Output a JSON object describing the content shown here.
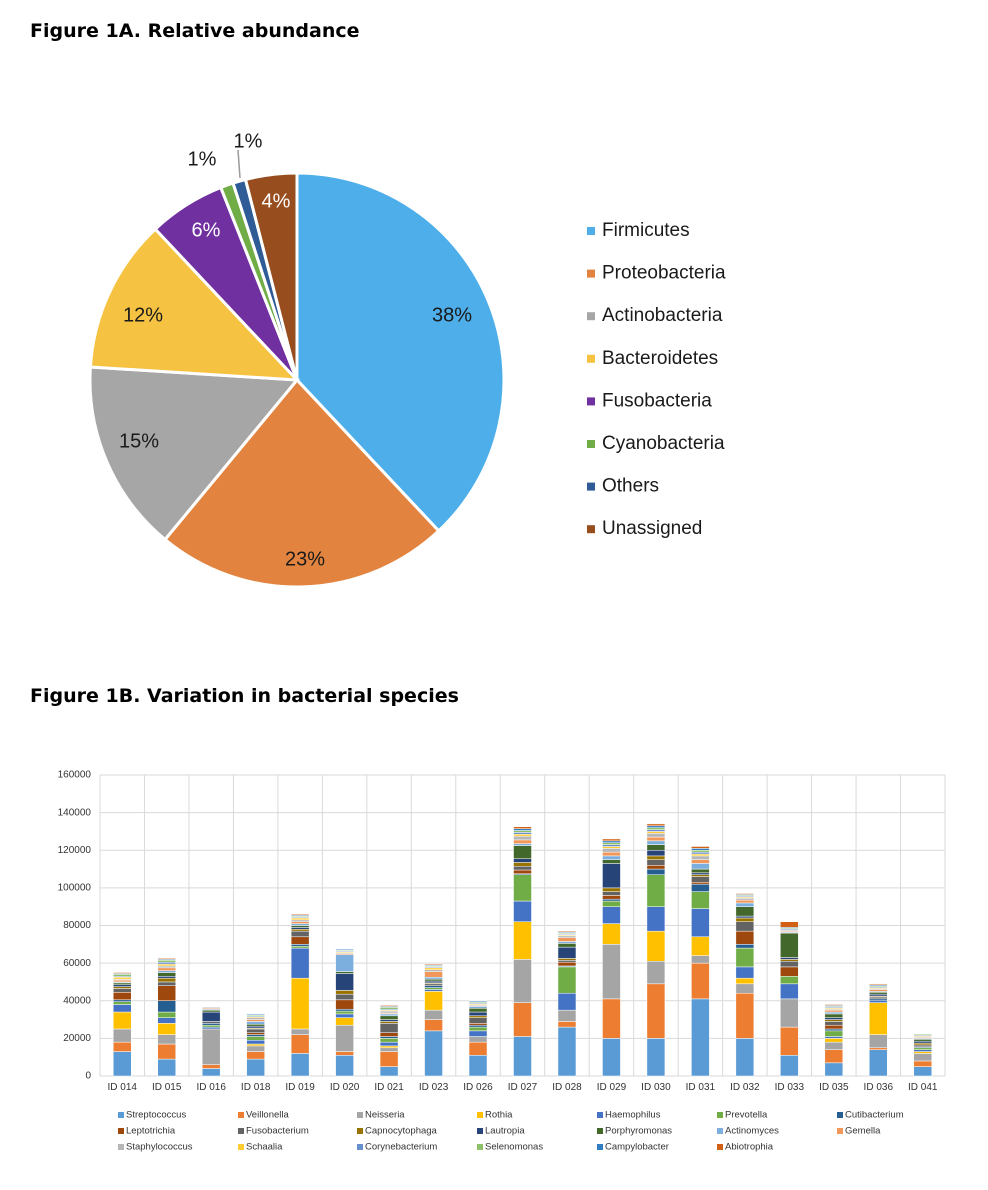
{
  "figure_a_title": "Figure 1A. Relative abundance",
  "figure_b_title": "Figure 1B. Variation in bacterial species",
  "chart_data": [
    {
      "type": "pie",
      "title": "Figure 1A. Relative abundance",
      "slices": [
        {
          "label": "Firmicutes",
          "value": 38,
          "text": "38%",
          "color": "#4DAEEA"
        },
        {
          "label": "Proteobacteria",
          "value": 23,
          "text": "23%",
          "color": "#E2843F"
        },
        {
          "label": "Actinobacteria",
          "value": 15,
          "text": "15%",
          "color": "#A6A6A6"
        },
        {
          "label": "Bacteroidetes",
          "value": 12,
          "text": "12%",
          "color": "#F5C242"
        },
        {
          "label": "Fusobacteria",
          "value": 6,
          "text": "6%",
          "color": "#7030A0"
        },
        {
          "label": "Cyanobacteria",
          "value": 1,
          "text": "1%",
          "color": "#70AD47"
        },
        {
          "label": "Others",
          "value": 1,
          "text": "1%",
          "color": "#2F5C96"
        },
        {
          "label": "Unassigned",
          "value": 4,
          "text": "4%",
          "color": "#974D1E"
        }
      ]
    },
    {
      "type": "bar",
      "stacked": true,
      "title": "Figure 1B. Variation in bacterial species",
      "xlabel": "",
      "ylabel": "",
      "ylim": [
        0,
        160000
      ],
      "yticks": [
        0,
        20000,
        40000,
        60000,
        80000,
        100000,
        120000,
        140000,
        160000
      ],
      "ytick_labels": [
        "0",
        "20000",
        "40000",
        "60000",
        "80000",
        "100000",
        "120000",
        "140000",
        "160000"
      ],
      "categories": [
        "ID 014",
        "ID 015",
        "ID 016",
        "ID 018",
        "ID 019",
        "ID 020",
        "ID 021",
        "ID 023",
        "ID 026",
        "ID 027",
        "ID 028",
        "ID 029",
        "ID 030",
        "ID 031",
        "ID 032",
        "ID 033",
        "ID 035",
        "ID 036",
        "ID 041"
      ],
      "series": [
        {
          "name": "Streptococcus",
          "color": "#5B9BD5",
          "values": [
            13000,
            9000,
            4000,
            9000,
            12000,
            11000,
            5000,
            24000,
            11000,
            21000,
            26000,
            20000,
            20000,
            41000,
            20000,
            11000,
            7000,
            14000,
            5000
          ]
        },
        {
          "name": "Veillonella",
          "color": "#ED7D31",
          "values": [
            5000,
            8000,
            2000,
            4000,
            10000,
            2000,
            8000,
            6000,
            7000,
            18000,
            3000,
            21000,
            29000,
            19000,
            24000,
            15000,
            7000,
            1000,
            3000
          ]
        },
        {
          "name": "Neisseria",
          "color": "#A5A5A5",
          "values": [
            7000,
            5000,
            19000,
            3000,
            3000,
            14000,
            2000,
            5000,
            3000,
            23000,
            6000,
            29000,
            12000,
            4000,
            5000,
            15000,
            4000,
            7000,
            4000
          ]
        },
        {
          "name": "Rothia",
          "color": "#FFC000",
          "values": [
            9000,
            6000,
            0,
            1000,
            27000,
            4000,
            1000,
            10000,
            0,
            20000,
            0,
            11000,
            16000,
            10000,
            3000,
            0,
            2000,
            17000,
            1000
          ]
        },
        {
          "name": "Haemophilus",
          "color": "#4472C4",
          "values": [
            4000,
            3000,
            1000,
            2000,
            16000,
            2000,
            2000,
            1000,
            3000,
            11000,
            9000,
            9000,
            13000,
            15000,
            6000,
            8000,
            1000,
            1000,
            1000
          ]
        },
        {
          "name": "Prevotella",
          "color": "#70AD47",
          "values": [
            1500,
            3000,
            1000,
            2000,
            1000,
            1500,
            2000,
            1000,
            2000,
            14000,
            14000,
            3000,
            17000,
            9000,
            10000,
            4000,
            3000,
            0,
            1000
          ]
        },
        {
          "name": "Cutibacterium",
          "color": "#255E91",
          "values": [
            1000,
            6000,
            1000,
            1000,
            1000,
            1000,
            1000,
            1000,
            1000,
            500,
            500,
            1000,
            3000,
            4000,
            2000,
            0,
            1000,
            1000,
            500
          ]
        },
        {
          "name": "Leptotrichia",
          "color": "#9E480E",
          "values": [
            4000,
            8000,
            0,
            1000,
            4000,
            5000,
            2000,
            0,
            1000,
            2000,
            2000,
            2000,
            2000,
            1000,
            7000,
            5000,
            2000,
            0,
            0
          ]
        },
        {
          "name": "Fusobacterium",
          "color": "#636363",
          "values": [
            2000,
            2000,
            1000,
            2000,
            3000,
            3000,
            5000,
            1000,
            3000,
            2000,
            1000,
            2000,
            3000,
            3000,
            5000,
            3000,
            2000,
            1000,
            1000
          ]
        },
        {
          "name": "Capnocytophaga",
          "color": "#997300",
          "values": [
            1000,
            2000,
            0,
            500,
            1000,
            2000,
            1000,
            500,
            1000,
            2000,
            1000,
            2000,
            2000,
            1000,
            2000,
            1000,
            1000,
            500,
            1000
          ]
        },
        {
          "name": "Lautropia",
          "color": "#264478",
          "values": [
            1000,
            1000,
            5000,
            1000,
            1000,
            9000,
            1000,
            1000,
            2000,
            2000,
            6000,
            13000,
            3000,
            1000,
            1000,
            1000,
            1000,
            1000,
            1000
          ]
        },
        {
          "name": "Porphyromonas",
          "color": "#43682B",
          "values": [
            1000,
            2000,
            1000,
            1000,
            1000,
            1000,
            2000,
            1000,
            2000,
            7000,
            2000,
            2000,
            3000,
            2000,
            5000,
            13000,
            2000,
            1000,
            1000
          ]
        },
        {
          "name": "Actinomyces",
          "color": "#7CAFDD",
          "values": [
            500,
            1000,
            500,
            1500,
            1000,
            9000,
            1000,
            1000,
            1000,
            1000,
            1000,
            2000,
            2000,
            3000,
            2000,
            500,
            1000,
            500,
            500
          ]
        },
        {
          "name": "Gemella",
          "color": "#F1975A",
          "values": [
            1000,
            1500,
            500,
            1000,
            1000,
            500,
            500,
            3000,
            500,
            2000,
            2000,
            2000,
            2000,
            2000,
            1500,
            500,
            1000,
            1000,
            500
          ]
        },
        {
          "name": "Staphylococcus",
          "color": "#B7B7B7",
          "values": [
            500,
            1000,
            500,
            1000,
            1000,
            500,
            1000,
            1000,
            500,
            2000,
            1000,
            2000,
            2000,
            2000,
            1000,
            500,
            500,
            500,
            500
          ]
        },
        {
          "name": "Schaalia",
          "color": "#FFCD33",
          "values": [
            1000,
            1000,
            0,
            500,
            1000,
            500,
            500,
            1000,
            500,
            1000,
            500,
            1000,
            1000,
            1000,
            500,
            0,
            500,
            500,
            500
          ]
        },
        {
          "name": "Corynebacterium",
          "color": "#698ED0",
          "values": [
            500,
            1000,
            0,
            500,
            500,
            500,
            500,
            500,
            500,
            1000,
            500,
            1000,
            1000,
            1000,
            500,
            500,
            500,
            500,
            500
          ]
        },
        {
          "name": "Selenomonas",
          "color": "#8CC168",
          "values": [
            1000,
            1000,
            0,
            500,
            500,
            500,
            1000,
            500,
            500,
            1000,
            500,
            1000,
            1000,
            1000,
            500,
            500,
            500,
            500,
            500
          ]
        },
        {
          "name": "Campylobacter",
          "color": "#327DC2",
          "values": [
            500,
            500,
            0,
            500,
            500,
            500,
            500,
            500,
            500,
            1000,
            500,
            1000,
            1000,
            1000,
            500,
            500,
            500,
            500,
            0
          ]
        },
        {
          "name": "Abiotrophia",
          "color": "#D26012",
          "values": [
            500,
            500,
            0,
            0,
            500,
            0,
            500,
            500,
            0,
            1000,
            500,
            1000,
            1000,
            1000,
            500,
            3000,
            500,
            500,
            0
          ]
        }
      ],
      "legend_position": "bottom"
    }
  ]
}
